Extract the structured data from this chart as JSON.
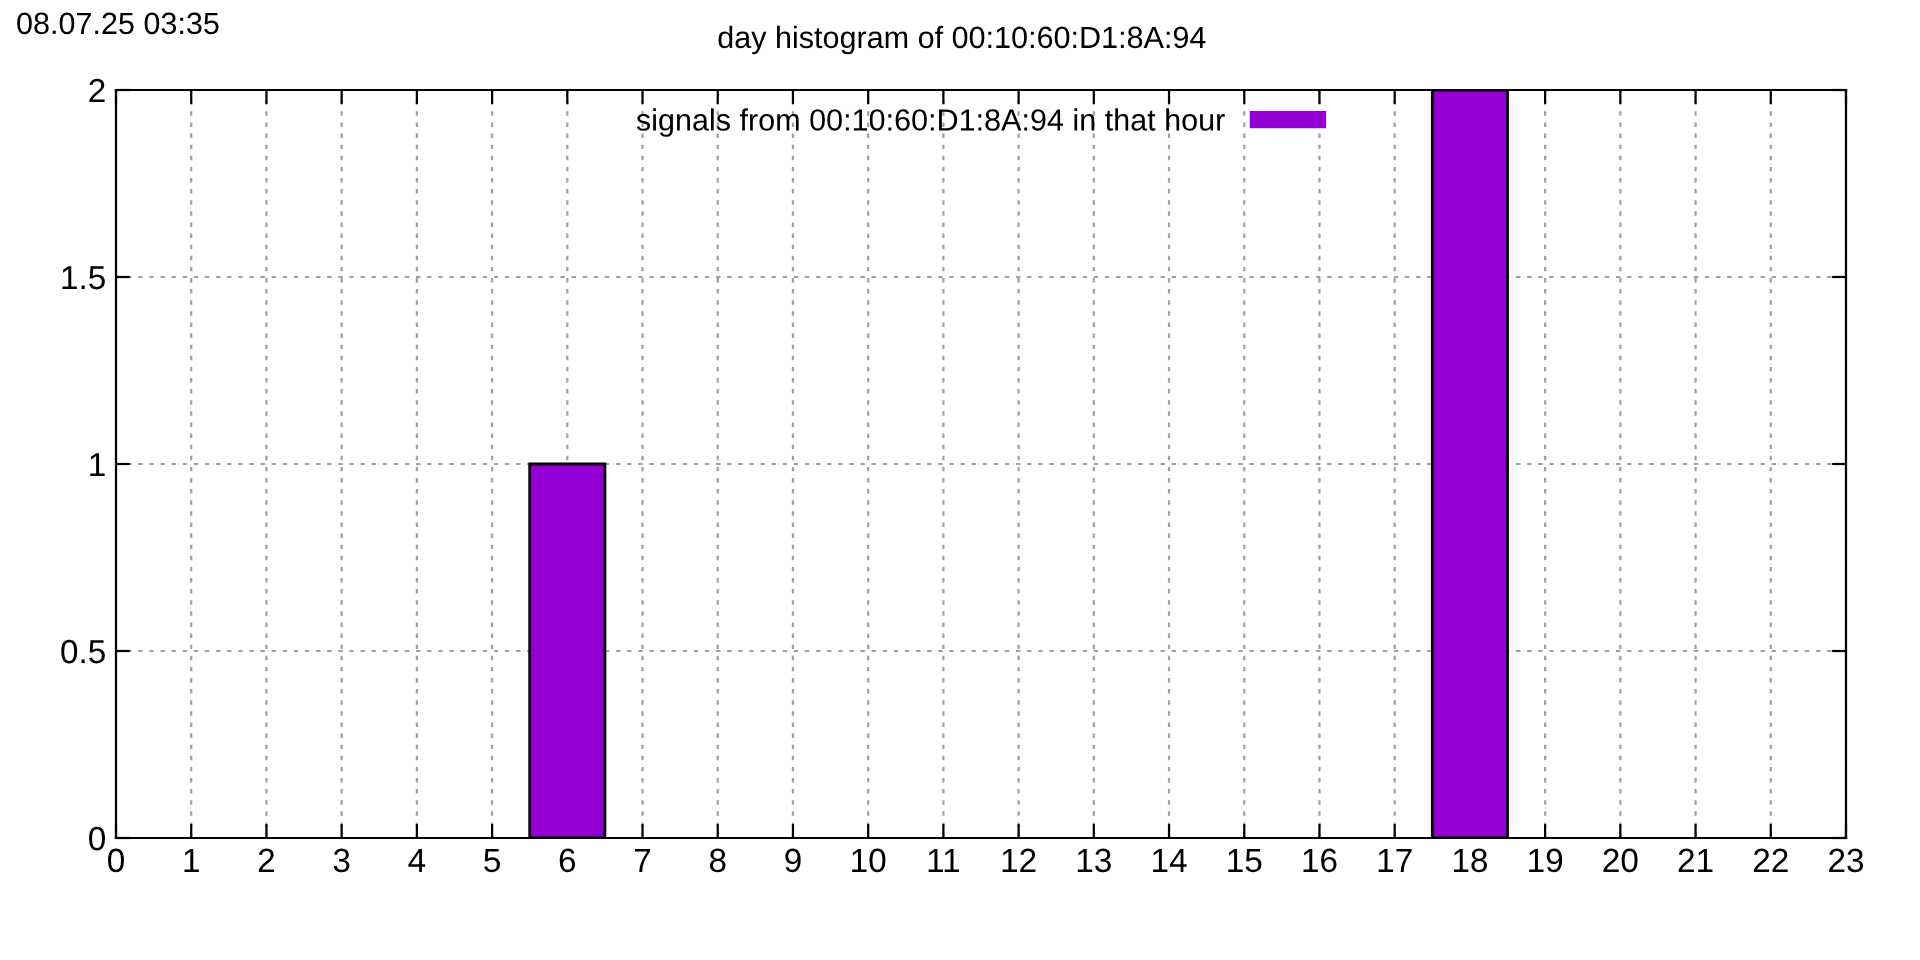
{
  "chart_data": {
    "type": "bar",
    "title": "day histogram of 00:10:60:D1:8A:94",
    "annotations": [
      "08.07.25 03:35"
    ],
    "x": [
      0,
      1,
      2,
      3,
      4,
      5,
      6,
      7,
      8,
      9,
      10,
      11,
      12,
      13,
      14,
      15,
      16,
      17,
      18,
      19,
      20,
      21,
      22
    ],
    "series": [
      {
        "name": "signals from 00:10:60:D1:8A:94 in that hour",
        "color": "#9400d3",
        "values": [
          0,
          0,
          0,
          0,
          0,
          0,
          1,
          0,
          0,
          0,
          0,
          0,
          0,
          0,
          0,
          0,
          0,
          0,
          2,
          0,
          0,
          0,
          0
        ]
      }
    ],
    "xlim": [
      0,
      23
    ],
    "xticks": [
      0,
      1,
      2,
      3,
      4,
      5,
      6,
      7,
      8,
      9,
      10,
      11,
      12,
      13,
      14,
      15,
      16,
      17,
      18,
      19,
      20,
      21,
      22,
      23
    ],
    "ylim": [
      0,
      2
    ],
    "yticks": [
      0,
      0.5,
      1,
      1.5,
      2
    ],
    "grid": true,
    "legend": "top"
  }
}
